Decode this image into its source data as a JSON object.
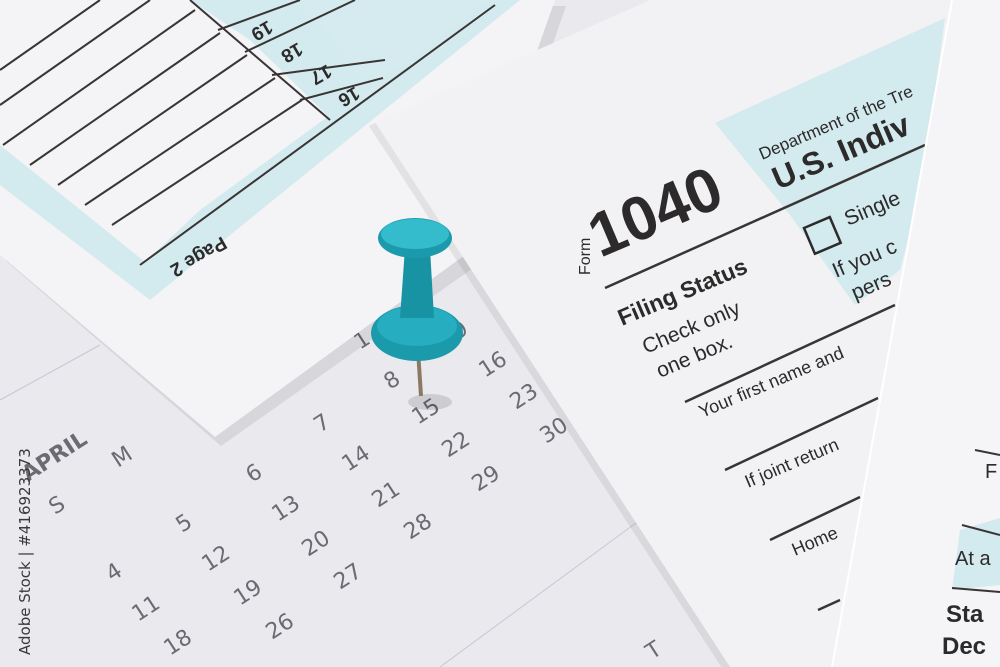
{
  "calendar": {
    "month": "APRIL",
    "day_headers": [
      "S",
      "M",
      "T"
    ],
    "days": [
      "1",
      "4",
      "5",
      "6",
      "7",
      "8",
      "9",
      "11",
      "12",
      "13",
      "14",
      "15",
      "16",
      "18",
      "19",
      "20",
      "21",
      "22",
      "23",
      "26",
      "27",
      "28",
      "29",
      "30"
    ]
  },
  "form_page2": {
    "line_numbers": [
      "19",
      "18",
      "17",
      "16"
    ],
    "page_label": "Page 2"
  },
  "form_1040": {
    "form_word": "Form",
    "number": "1040",
    "department": "Department of the Tre",
    "title": "U.S. Indiv",
    "filing_status": "Filing Status",
    "check_line1": "Check only",
    "check_line2": "one box.",
    "single": "Single",
    "if_you": "If you c",
    "pers": "pers",
    "first_name": "Your first name and",
    "joint": "If joint return",
    "home": "Home"
  },
  "form_right": {
    "f": "F",
    "at_a": "At a",
    "sta": "Sta",
    "dec": "Dec"
  },
  "watermark": "Adobe Stock | #416923373",
  "colors": {
    "pin": "#1fa3b5",
    "form_blue": "#d3eaee",
    "paper": "#f3f3f5"
  }
}
